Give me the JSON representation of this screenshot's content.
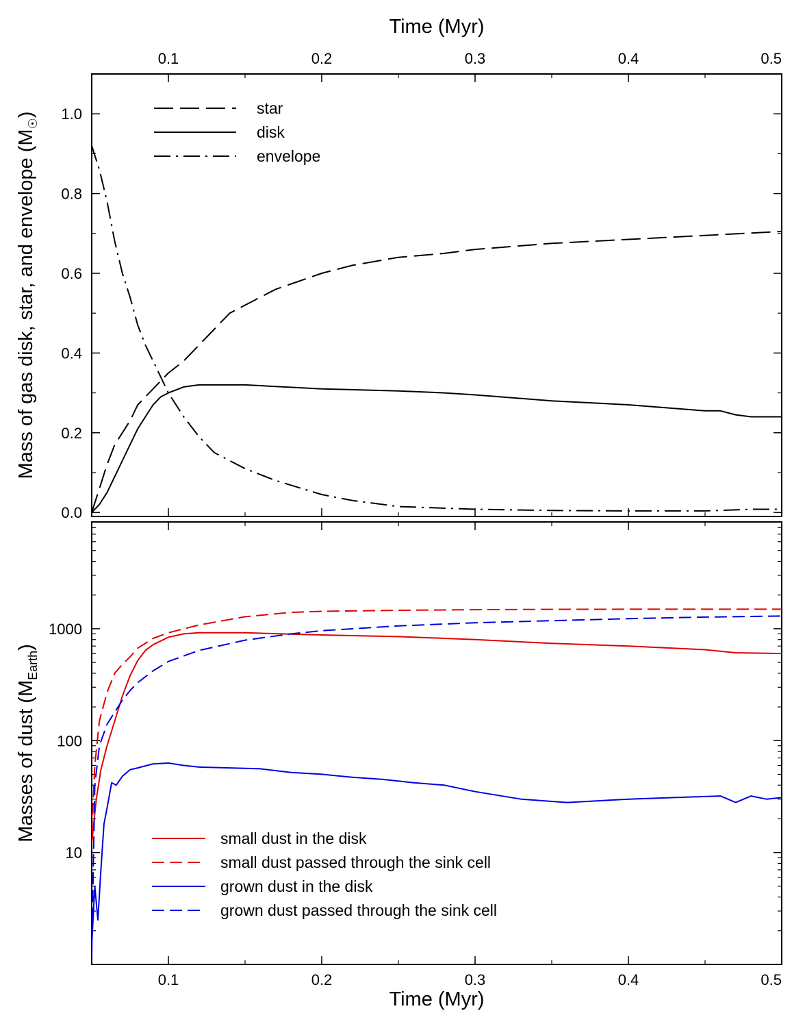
{
  "chart_data": [
    {
      "type": "line",
      "panel": "top",
      "xlabel_top": "Time (Myr)",
      "ylabel": "Mass of gas disk, star, and envelope (M",
      "ylabel_sub": "☉",
      "ylabel_close": ")",
      "xlim": [
        0.05,
        0.5
      ],
      "ylim": [
        -0.01,
        1.1
      ],
      "x_ticks": [
        "0.1",
        "0.2",
        "0.3",
        "0.4",
        "0.5"
      ],
      "x_tick_values": [
        0.1,
        0.2,
        0.3,
        0.4,
        0.5
      ],
      "y_ticks": [
        "0.0",
        "0.2",
        "0.4",
        "0.6",
        "0.8",
        "1.0"
      ],
      "y_tick_values": [
        0.0,
        0.2,
        0.4,
        0.6,
        0.8,
        1.0
      ],
      "legend_position": "top-left",
      "series": [
        {
          "name": "star",
          "dash": "long-dash",
          "color": "#000000",
          "x": [
            0.05,
            0.055,
            0.06,
            0.065,
            0.07,
            0.075,
            0.08,
            0.09,
            0.1,
            0.11,
            0.12,
            0.13,
            0.14,
            0.15,
            0.17,
            0.2,
            0.22,
            0.25,
            0.28,
            0.3,
            0.35,
            0.4,
            0.45,
            0.5
          ],
          "y": [
            0.0,
            0.06,
            0.12,
            0.17,
            0.2,
            0.23,
            0.27,
            0.31,
            0.35,
            0.38,
            0.42,
            0.46,
            0.5,
            0.52,
            0.56,
            0.6,
            0.62,
            0.64,
            0.65,
            0.66,
            0.675,
            0.685,
            0.695,
            0.705
          ]
        },
        {
          "name": "disk",
          "dash": "solid",
          "color": "#000000",
          "x": [
            0.05,
            0.055,
            0.06,
            0.065,
            0.07,
            0.075,
            0.08,
            0.085,
            0.09,
            0.095,
            0.1,
            0.11,
            0.12,
            0.15,
            0.2,
            0.25,
            0.28,
            0.3,
            0.35,
            0.4,
            0.45,
            0.46,
            0.47,
            0.48,
            0.5
          ],
          "y": [
            0.0,
            0.02,
            0.05,
            0.09,
            0.13,
            0.17,
            0.21,
            0.24,
            0.27,
            0.29,
            0.3,
            0.315,
            0.32,
            0.32,
            0.31,
            0.305,
            0.3,
            0.295,
            0.28,
            0.27,
            0.255,
            0.255,
            0.245,
            0.24,
            0.24
          ]
        },
        {
          "name": "envelope",
          "dash": "dash-dot",
          "color": "#000000",
          "x": [
            0.05,
            0.055,
            0.06,
            0.065,
            0.07,
            0.075,
            0.08,
            0.085,
            0.09,
            0.095,
            0.1,
            0.11,
            0.12,
            0.13,
            0.15,
            0.17,
            0.2,
            0.22,
            0.25,
            0.3,
            0.35,
            0.4,
            0.45,
            0.48,
            0.5
          ],
          "y": [
            0.92,
            0.86,
            0.78,
            0.68,
            0.6,
            0.54,
            0.47,
            0.42,
            0.38,
            0.34,
            0.3,
            0.24,
            0.19,
            0.15,
            0.11,
            0.08,
            0.045,
            0.03,
            0.015,
            0.008,
            0.005,
            0.004,
            0.004,
            0.008,
            0.008
          ]
        }
      ]
    },
    {
      "type": "line",
      "panel": "bottom",
      "xlabel": "Time (Myr)",
      "ylabel": "Masses of dust (M",
      "ylabel_sub": "Earth",
      "ylabel_close": ")",
      "yscale": "log",
      "xlim": [
        0.05,
        0.5
      ],
      "ylim": [
        1,
        9000
      ],
      "x_ticks": [
        "0.1",
        "0.2",
        "0.3",
        "0.4",
        "0.5"
      ],
      "x_tick_values": [
        0.1,
        0.2,
        0.3,
        0.4,
        0.5
      ],
      "y_ticks": [
        "10",
        "100",
        "1000"
      ],
      "y_tick_values": [
        10,
        100,
        1000
      ],
      "legend_position": "bottom-left",
      "series": [
        {
          "name": "small dust in the disk",
          "dash": "solid",
          "color": "#e00000",
          "x": [
            0.05,
            0.053,
            0.056,
            0.06,
            0.065,
            0.07,
            0.075,
            0.08,
            0.085,
            0.09,
            0.1,
            0.11,
            0.12,
            0.15,
            0.2,
            0.25,
            0.3,
            0.35,
            0.4,
            0.45,
            0.47,
            0.5
          ],
          "y": [
            12,
            30,
            55,
            90,
            150,
            250,
            380,
            520,
            640,
            720,
            840,
            900,
            920,
            920,
            880,
            850,
            800,
            740,
            700,
            650,
            610,
            600
          ]
        },
        {
          "name": "small dust passed through the sink cell",
          "dash": "dashed",
          "color": "#e00000",
          "x": [
            0.05,
            0.052,
            0.055,
            0.06,
            0.065,
            0.07,
            0.075,
            0.08,
            0.09,
            0.1,
            0.12,
            0.15,
            0.18,
            0.2,
            0.25,
            0.3,
            0.35,
            0.4,
            0.45,
            0.5
          ],
          "y": [
            15,
            60,
            150,
            270,
            400,
            480,
            560,
            670,
            820,
            920,
            1080,
            1280,
            1400,
            1430,
            1460,
            1480,
            1490,
            1495,
            1495,
            1495
          ]
        },
        {
          "name": "grown dust in the disk",
          "dash": "solid",
          "color": "#0000e0",
          "x": [
            0.05,
            0.052,
            0.054,
            0.056,
            0.058,
            0.06,
            0.063,
            0.066,
            0.07,
            0.075,
            0.08,
            0.09,
            0.1,
            0.11,
            0.12,
            0.14,
            0.16,
            0.18,
            0.2,
            0.22,
            0.24,
            0.26,
            0.28,
            0.3,
            0.33,
            0.36,
            0.4,
            0.43,
            0.46,
            0.47,
            0.48,
            0.49,
            0.5
          ],
          "y": [
            1.5,
            5,
            2.5,
            7,
            18,
            25,
            42,
            40,
            48,
            55,
            57,
            62,
            63,
            60,
            58,
            57,
            56,
            52,
            50,
            47,
            45,
            42,
            40,
            35,
            30,
            28,
            30,
            31,
            32,
            28,
            32,
            30,
            31
          ]
        },
        {
          "name": "grown dust passed through the sink cell",
          "dash": "dashed",
          "color": "#0000e0",
          "x": [
            0.05,
            0.052,
            0.055,
            0.06,
            0.065,
            0.07,
            0.075,
            0.08,
            0.09,
            0.1,
            0.12,
            0.15,
            0.18,
            0.2,
            0.25,
            0.3,
            0.35,
            0.4,
            0.45,
            0.5
          ],
          "y": [
            1.2,
            40,
            90,
            140,
            180,
            230,
            280,
            330,
            420,
            510,
            640,
            790,
            900,
            960,
            1060,
            1130,
            1180,
            1230,
            1270,
            1300
          ]
        }
      ]
    }
  ]
}
